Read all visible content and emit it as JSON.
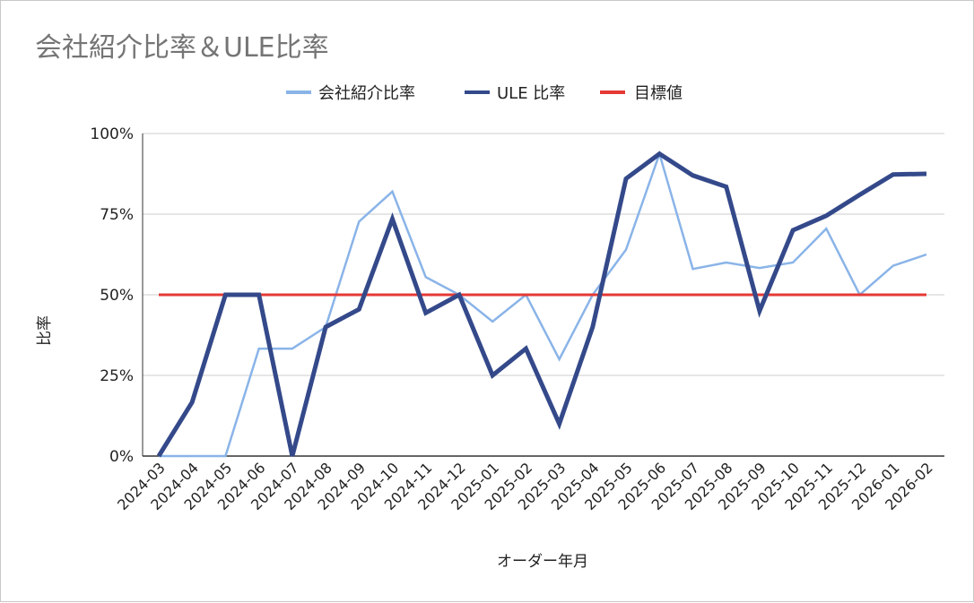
{
  "chart_data": {
    "type": "line",
    "title": "会社紹介比率＆ULE比率",
    "xlabel": "オーダー年月",
    "ylabel": "比率",
    "ylim": [
      0,
      100
    ],
    "y_ticks": [
      "0%",
      "25%",
      "50%",
      "75%",
      "100%"
    ],
    "y_tick_values": [
      0,
      25,
      50,
      75,
      100
    ],
    "grid": true,
    "legend_position": "top",
    "categories": [
      "2024-03",
      "2024-04",
      "2024-05",
      "2024-06",
      "2024-07",
      "2024-08",
      "2024-09",
      "2024-10",
      "2024-11",
      "2024-12",
      "2025-01",
      "2025-02",
      "2025-03",
      "2025-04",
      "2025-05",
      "2025-06",
      "2025-07",
      "2025-08",
      "2025-09",
      "2025-10",
      "2025-11",
      "2025-12",
      "2026-01",
      "2026-02"
    ],
    "series": [
      {
        "name": "会社紹介比率",
        "color": "#8AB4E8",
        "values": [
          0,
          0,
          0,
          33.3,
          33.3,
          40,
          72.7,
          82,
          55.5,
          50,
          41.7,
          50,
          30,
          50,
          64,
          93.7,
          58,
          60,
          58.3,
          60,
          70.5,
          50,
          59,
          62.5
        ]
      },
      {
        "name": "ULE 比率",
        "color": "#34498A",
        "values": [
          0,
          16.7,
          50,
          50,
          0,
          40,
          45.5,
          73.5,
          44.4,
          50,
          25,
          33.3,
          10,
          40,
          86,
          93.7,
          87,
          83.5,
          45,
          70,
          74.5,
          81,
          87.3,
          87.5
        ]
      },
      {
        "name": "目標値",
        "color": "#E53935",
        "values": [
          50,
          50,
          50,
          50,
          50,
          50,
          50,
          50,
          50,
          50,
          50,
          50,
          50,
          50,
          50,
          50,
          50,
          50,
          50,
          50,
          50,
          50,
          50,
          50
        ]
      }
    ]
  }
}
